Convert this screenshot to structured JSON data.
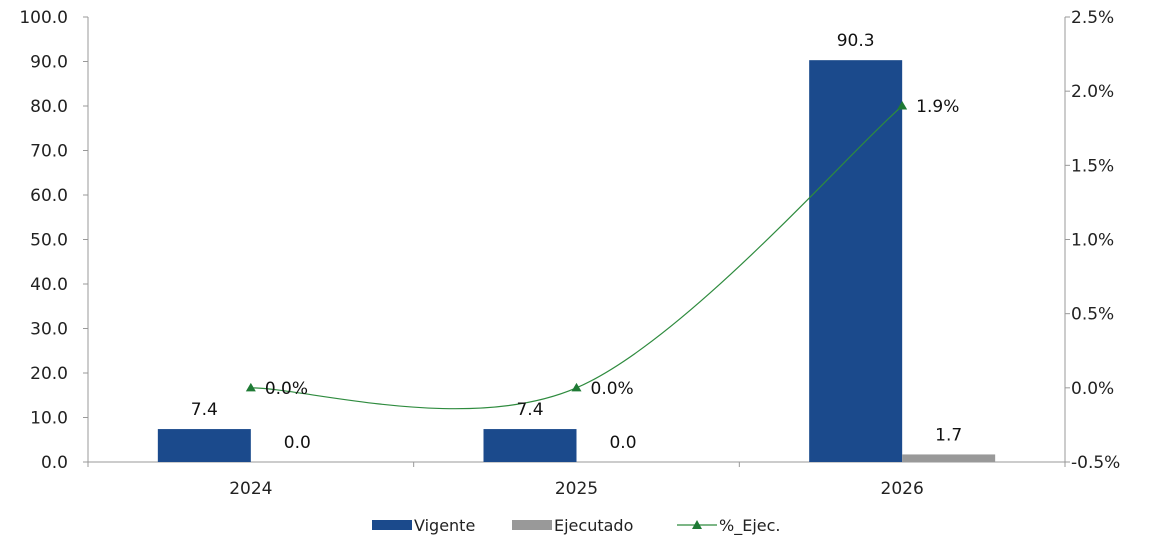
{
  "chart_data": {
    "type": "bar",
    "categories": [
      "2024",
      "2025",
      "2026"
    ],
    "series": [
      {
        "name": "Vigente",
        "type": "bar",
        "axis": "left",
        "color": "#1b4a8c",
        "values": [
          7.4,
          7.4,
          90.3
        ],
        "labels": [
          "7.4",
          "7.4",
          "90.3"
        ]
      },
      {
        "name": "Ejecutado",
        "type": "bar",
        "axis": "left",
        "color": "#999999",
        "values": [
          0.0,
          0.0,
          1.7
        ],
        "labels": [
          "0.0",
          "0.0",
          "1.7"
        ]
      },
      {
        "name": "%_Ejec.",
        "type": "line",
        "axis": "right",
        "color": "#2e8b3e",
        "marker": "triangle",
        "smooth": true,
        "values": [
          0.0,
          0.0,
          1.9
        ],
        "labels": [
          "0.0%",
          "0.0%",
          "1.9%"
        ]
      }
    ],
    "y_left": {
      "range": [
        0,
        100
      ],
      "ticks": [
        "0.0",
        "10.0",
        "20.0",
        "30.0",
        "40.0",
        "50.0",
        "60.0",
        "70.0",
        "80.0",
        "90.0",
        "100.0"
      ]
    },
    "y_right": {
      "range": [
        -0.5,
        2.5
      ],
      "ticks": [
        "-0.5%",
        "0.0%",
        "0.5%",
        "1.0%",
        "1.5%",
        "2.0%",
        "2.5%"
      ]
    },
    "grid": false,
    "legend_position": "bottom",
    "legend": [
      "Vigente",
      "Ejecutado",
      "%_Ejec."
    ]
  }
}
